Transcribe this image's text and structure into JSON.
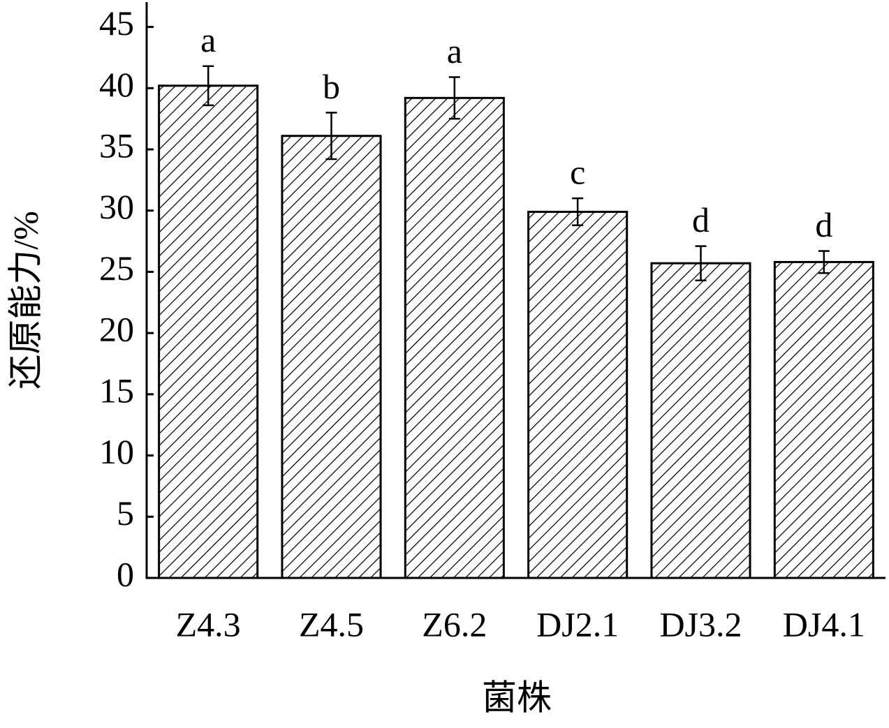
{
  "chart_data": {
    "type": "bar",
    "x_label": "菌株",
    "y_label": "还原能力/%",
    "categories": [
      "Z4.3",
      "Z4.5",
      "Z6.2",
      "DJ2.1",
      "DJ3.2",
      "DJ4.1"
    ],
    "values": [
      40.2,
      36.1,
      39.2,
      29.9,
      25.7,
      25.8
    ],
    "errors": [
      1.6,
      1.9,
      1.7,
      1.1,
      1.4,
      0.9
    ],
    "significance": [
      "a",
      "b",
      "a",
      "c",
      "d",
      "d"
    ],
    "color": "#000000",
    "ylim": [
      0,
      47.2
    ],
    "yticks": [
      0,
      5,
      10,
      15,
      20,
      25,
      30,
      35,
      40,
      45
    ]
  }
}
